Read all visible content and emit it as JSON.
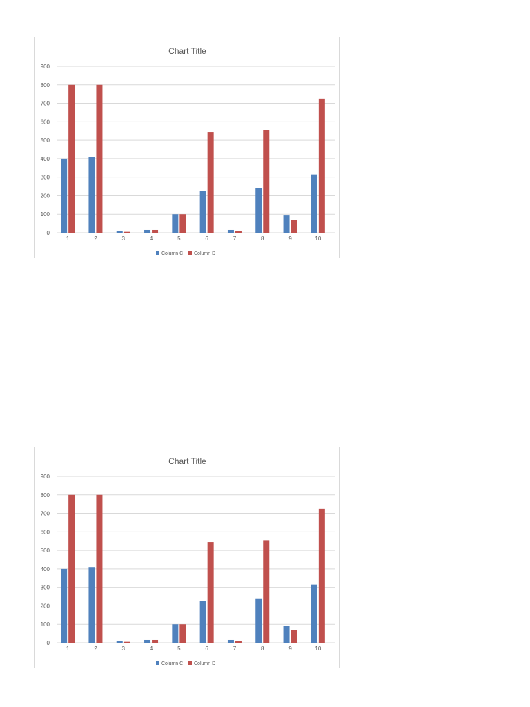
{
  "colors": {
    "series_c": "#4f81bd",
    "series_d": "#c0504d",
    "gridline": "#d9d9d9",
    "text": "#595959"
  },
  "chart_data": [
    {
      "type": "bar",
      "title": "Chart Title",
      "xlabel": "",
      "ylabel": "",
      "categories": [
        "1",
        "2",
        "3",
        "4",
        "5",
        "6",
        "7",
        "8",
        "9",
        "10"
      ],
      "series": [
        {
          "name": "Column C",
          "values": [
            400,
            410,
            10,
            15,
            100,
            225,
            15,
            240,
            93,
            315
          ]
        },
        {
          "name": "Column D",
          "values": [
            800,
            800,
            5,
            15,
            100,
            545,
            10,
            555,
            68,
            725
          ]
        }
      ],
      "ylim": [
        0,
        900
      ],
      "yticks": [
        "0",
        "100",
        "200",
        "300",
        "400",
        "500",
        "600",
        "700",
        "800",
        "900"
      ],
      "grid": true,
      "legend_position": "bottom"
    },
    {
      "type": "bar",
      "title": "Chart Title",
      "xlabel": "",
      "ylabel": "",
      "categories": [
        "1",
        "2",
        "3",
        "4",
        "5",
        "6",
        "7",
        "8",
        "9",
        "10"
      ],
      "series": [
        {
          "name": "Column C",
          "values": [
            400,
            410,
            10,
            15,
            100,
            225,
            15,
            240,
            93,
            315
          ]
        },
        {
          "name": "Column D",
          "values": [
            800,
            800,
            5,
            15,
            100,
            545,
            10,
            555,
            68,
            725
          ]
        }
      ],
      "ylim": [
        0,
        900
      ],
      "yticks": [
        "0",
        "100",
        "200",
        "300",
        "400",
        "500",
        "600",
        "700",
        "800",
        "900"
      ],
      "grid": true,
      "legend_position": "bottom"
    }
  ]
}
